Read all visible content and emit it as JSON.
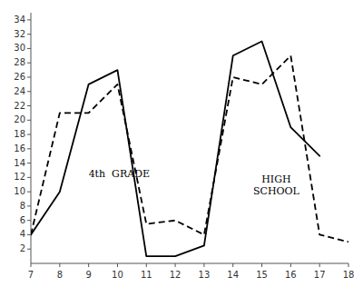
{
  "chart_data": {
    "type": "line",
    "x": [
      7,
      8,
      9,
      10,
      11,
      12,
      13,
      14,
      15,
      16,
      17,
      18
    ],
    "series": [
      {
        "color": "#000000",
        "line_style": "solid",
        "values": [
          4,
          10,
          25,
          27,
          1,
          1,
          2.5,
          29,
          31,
          19,
          15,
          null
        ]
      },
      {
        "color": "#000000",
        "line_style": "dashed",
        "values": [
          4,
          21,
          21,
          25,
          5.5,
          6,
          4,
          26,
          25,
          29,
          4,
          3
        ]
      }
    ],
    "xlim": [
      7,
      18
    ],
    "ylim": [
      0,
      35
    ],
    "xticks": [
      7,
      8,
      9,
      10,
      11,
      12,
      13,
      14,
      15,
      16,
      17,
      18
    ],
    "yticks": [
      2,
      4,
      6,
      8,
      10,
      12,
      14,
      16,
      18,
      20,
      22,
      24,
      26,
      28,
      30,
      32,
      34
    ],
    "grid": false,
    "annotations": [
      {
        "text": "4th  GRADE",
        "x": 9.0,
        "y": 12,
        "color": "#000000"
      },
      {
        "text": "HIGH\nSCHOOL",
        "x": 15.5,
        "y": 11,
        "color": "#000000"
      }
    ]
  }
}
